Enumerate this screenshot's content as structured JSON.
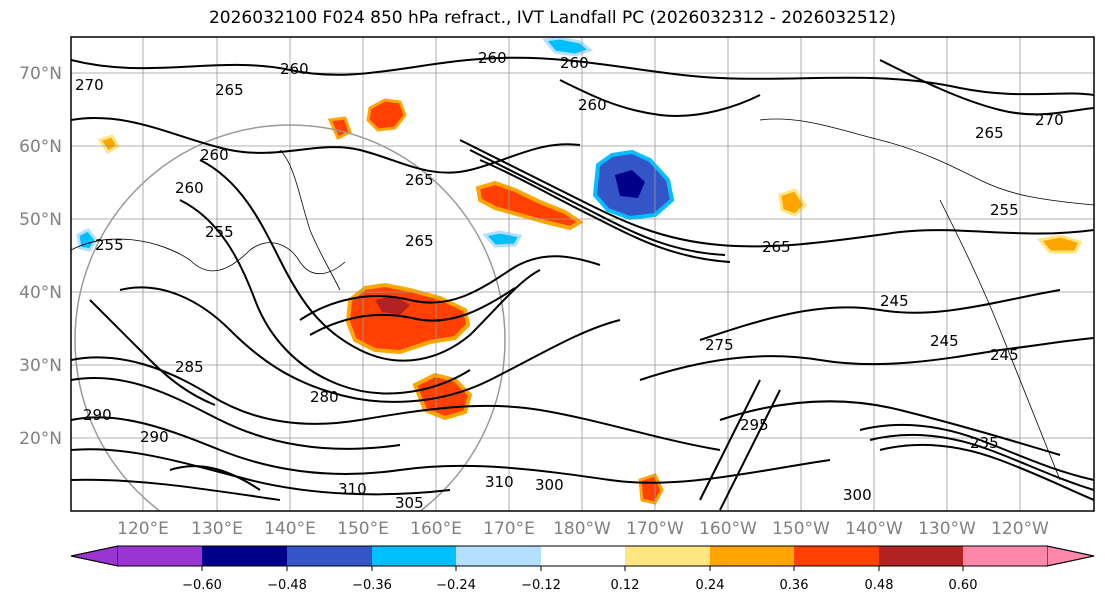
{
  "title": "2026032100 F024 850 hPa refract., IVT Landfall PC (2026032312 - 2026032512)",
  "map": {
    "lat_labels": [
      "70°N",
      "60°N",
      "50°N",
      "40°N",
      "30°N",
      "20°N"
    ],
    "lon_labels": [
      "120°E",
      "130°E",
      "140°E",
      "150°E",
      "160°E",
      "170°E",
      "180°W",
      "170°W",
      "160°W",
      "150°W",
      "140°W",
      "130°W",
      "120°W"
    ],
    "contour_labels": [
      "260",
      "260",
      "260",
      "260",
      "265",
      "270",
      "270",
      "265",
      "260",
      "260",
      "255",
      "265",
      "265",
      "255",
      "255",
      "265",
      "275",
      "245",
      "245",
      "245",
      "235",
      "285",
      "290",
      "280",
      "300",
      "305",
      "310",
      "310",
      "300",
      "295",
      "290"
    ]
  },
  "colorbar": {
    "ticks": [
      "−0.60",
      "−0.48",
      "−0.36",
      "−0.24",
      "−0.12",
      "0.12",
      "0.24",
      "0.36",
      "0.48",
      "0.60"
    ],
    "colors": [
      "#9a35d4",
      "#00008b",
      "#3455c8",
      "#00bfff",
      "#b3e0ff",
      "#ffffff",
      "#ffe680",
      "#ffa500",
      "#ff4000",
      "#b22222",
      "#ff88aa"
    ]
  }
}
